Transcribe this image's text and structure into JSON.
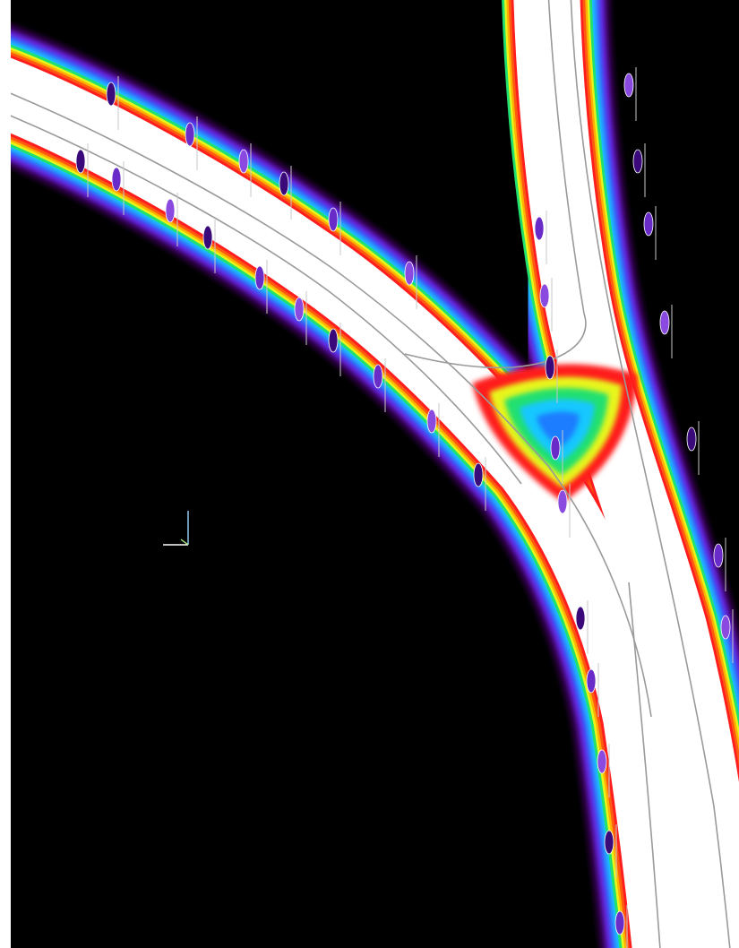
{
  "scene": {
    "background": "#000000",
    "canvas_bg": "#ffffff",
    "heatmap_colors": [
      "#2a0040",
      "#6a1ad8",
      "#3a5cff",
      "#16c7ff",
      "#20e070",
      "#e8f51a",
      "#ffb000",
      "#ff5a10",
      "#ff1e1e",
      "#ffffff"
    ],
    "cold_spot_colors": [
      "#1f7dff",
      "#19c8ff",
      "#20e070",
      "#e8f51a"
    ],
    "lane_line_color": "#9a9a9a",
    "pole_color": "#c8c8c8",
    "luminaire_colors": [
      "#3a0a7a",
      "#6a2cc8",
      "#8a4ae0"
    ],
    "axis_gizmo": {
      "x_color": "#ffffff",
      "y_color": "#9ad7ff",
      "z_color": "#b4f08c"
    }
  }
}
